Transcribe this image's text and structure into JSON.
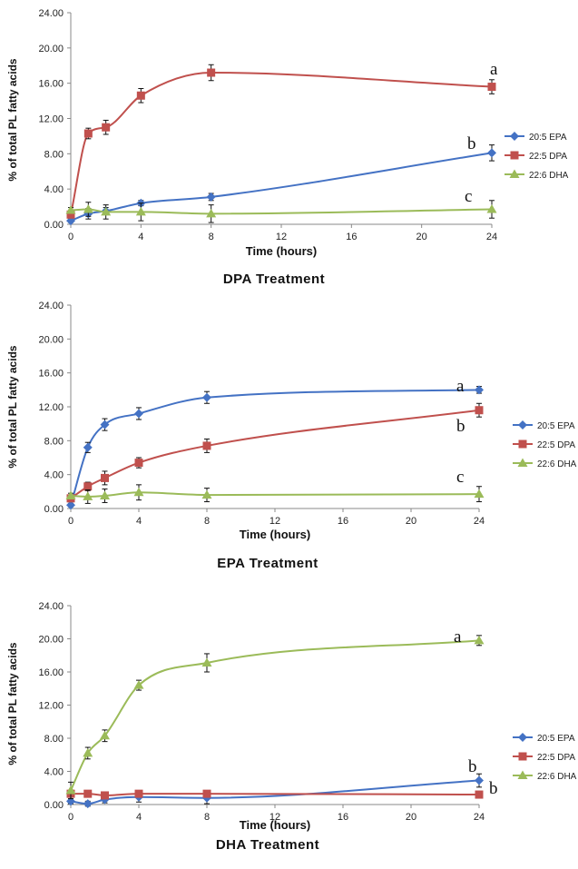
{
  "chart_data": [
    {
      "type": "line",
      "title": "DPA  Treatment",
      "xlabel": "Time (hours)",
      "ylabel": "% of total PL fatty acids",
      "x_ticks": [
        "0",
        "4",
        "8",
        "12",
        "16",
        "20",
        "24"
      ],
      "y_ticks": [
        "0.00",
        "4.00",
        "8.00",
        "12.00",
        "16.00",
        "20.00",
        "24.00"
      ],
      "xlim": [
        0,
        24
      ],
      "ylim": [
        0,
        24
      ],
      "legend": "right",
      "x": [
        0,
        1,
        2,
        4,
        8,
        24
      ],
      "series": [
        {
          "name": "20:5 EPA",
          "color": "#4472c4",
          "marker": "diamond",
          "values": [
            0.4,
            1.2,
            1.5,
            2.4,
            3.1,
            8.1
          ],
          "errors": [
            0.2,
            0.6,
            0.4,
            0.3,
            0.4,
            0.9
          ]
        },
        {
          "name": "22:5 DPA",
          "color": "#c0504d",
          "marker": "square",
          "values": [
            1.1,
            10.3,
            11.0,
            14.6,
            17.2,
            15.6
          ],
          "errors": [
            0.3,
            0.6,
            0.8,
            0.8,
            0.9,
            0.8
          ]
        },
        {
          "name": "22:6 DHA",
          "color": "#9bbb59",
          "marker": "triangle",
          "values": [
            1.6,
            1.7,
            1.4,
            1.4,
            1.2,
            1.7
          ],
          "errors": [
            0.3,
            0.8,
            0.8,
            1.0,
            1.0,
            1.0
          ]
        }
      ],
      "annotations": [
        "a",
        "b",
        "c"
      ]
    },
    {
      "type": "line",
      "title": "EPA  Treatment",
      "xlabel": "Time (hours)",
      "ylabel": "% of total PL fatty acids",
      "x_ticks": [
        "0",
        "4",
        "8",
        "12",
        "16",
        "20",
        "24"
      ],
      "y_ticks": [
        "0.00",
        "4.00",
        "8.00",
        "12.00",
        "16.00",
        "20.00",
        "24.00"
      ],
      "xlim": [
        0,
        24
      ],
      "ylim": [
        0,
        24
      ],
      "legend": "right",
      "x": [
        0,
        1,
        2,
        4,
        8,
        24
      ],
      "series": [
        {
          "name": "20:5 EPA",
          "color": "#4472c4",
          "marker": "diamond",
          "values": [
            0.4,
            7.2,
            9.9,
            11.2,
            13.1,
            14.0
          ],
          "errors": [
            0.2,
            0.6,
            0.7,
            0.7,
            0.7,
            0.4
          ]
        },
        {
          "name": "22:5 DPA",
          "color": "#c0504d",
          "marker": "square",
          "values": [
            1.2,
            2.6,
            3.6,
            5.4,
            7.4,
            11.6
          ],
          "errors": [
            0.4,
            0.5,
            0.8,
            0.6,
            0.8,
            0.8
          ]
        },
        {
          "name": "22:6 DHA",
          "color": "#9bbb59",
          "marker": "triangle",
          "values": [
            1.5,
            1.4,
            1.5,
            1.9,
            1.6,
            1.7
          ],
          "errors": [
            0.3,
            0.8,
            0.8,
            0.9,
            0.8,
            0.9
          ]
        }
      ],
      "annotations": [
        "a",
        "b",
        "c"
      ]
    },
    {
      "type": "line",
      "title": "DHA  Treatment",
      "xlabel": "Time (hours)",
      "ylabel": "% of total PL fatty acids",
      "x_ticks": [
        "0",
        "4",
        "8",
        "12",
        "16",
        "20",
        "24"
      ],
      "y_ticks": [
        "0.00",
        "4.00",
        "8.00",
        "12.00",
        "16.00",
        "20.00",
        "24.00"
      ],
      "xlim": [
        0,
        24
      ],
      "ylim": [
        0,
        24
      ],
      "legend": "right",
      "x": [
        0,
        1,
        2,
        4,
        8,
        24
      ],
      "series": [
        {
          "name": "20:5 EPA",
          "color": "#4472c4",
          "marker": "diamond",
          "values": [
            0.4,
            0.1,
            0.6,
            0.9,
            0.8,
            2.9
          ],
          "errors": [
            0.3,
            0.3,
            0.4,
            0.6,
            0.7,
            0.8
          ]
        },
        {
          "name": "22:5 DPA",
          "color": "#c0504d",
          "marker": "square",
          "values": [
            1.3,
            1.3,
            1.1,
            1.3,
            1.3,
            1.2
          ],
          "errors": [
            0.3,
            0.3,
            0.2,
            0.3,
            0.3,
            0.3
          ]
        },
        {
          "name": "22:6 DHA",
          "color": "#9bbb59",
          "marker": "triangle",
          "values": [
            1.7,
            6.2,
            8.3,
            14.4,
            17.1,
            19.8
          ],
          "errors": [
            1.0,
            0.7,
            0.7,
            0.6,
            1.1,
            0.6
          ]
        }
      ],
      "annotations": [
        "a",
        "b",
        "b"
      ]
    }
  ]
}
